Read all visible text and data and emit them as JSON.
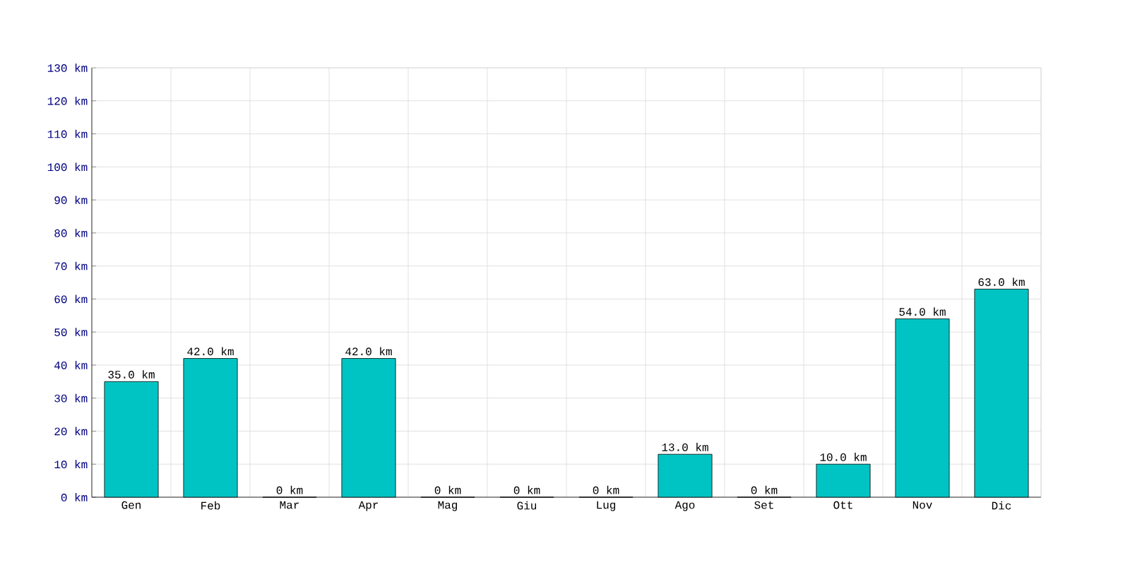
{
  "chart_data": {
    "type": "bar",
    "categories": [
      "Gen",
      "Feb",
      "Mar",
      "Apr",
      "Mag",
      "Giu",
      "Lug",
      "Ago",
      "Set",
      "Ott",
      "Nov",
      "Dic"
    ],
    "values": [
      35,
      42,
      0,
      42,
      0,
      0,
      0,
      13,
      0,
      10,
      54,
      63
    ],
    "value_labels": [
      "35.0 km",
      "42.0 km",
      "0 km",
      "42.0 km",
      "0 km",
      "0 km",
      "0 km",
      "13.0 km",
      "0 km",
      "10.0 km",
      "54.0 km",
      "63.0 km"
    ],
    "color": "#00c4c4",
    "ylim": [
      0,
      130
    ],
    "yticks": [
      {
        "value": 0,
        "label": "0 km"
      },
      {
        "value": 10,
        "label": "10 km"
      },
      {
        "value": 20,
        "label": "20 km"
      },
      {
        "value": 30,
        "label": "30 km"
      },
      {
        "value": 40,
        "label": "40 km"
      },
      {
        "value": 50,
        "label": "50 km"
      },
      {
        "value": 60,
        "label": "60 km"
      },
      {
        "value": 70,
        "label": "70 km"
      },
      {
        "value": 80,
        "label": "80 km"
      },
      {
        "value": 90,
        "label": "90 km"
      },
      {
        "value": 100,
        "label": "100 km"
      },
      {
        "value": 110,
        "label": "110 km"
      },
      {
        "value": 120,
        "label": "120 km"
      },
      {
        "value": 130,
        "label": "130 km"
      }
    ],
    "grid": true
  }
}
